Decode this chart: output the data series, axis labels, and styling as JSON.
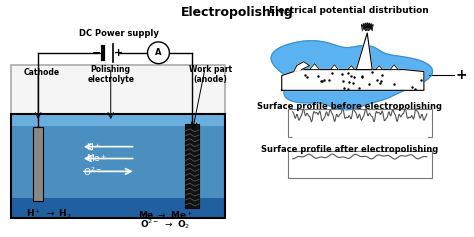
{
  "title": "Electropolishing",
  "left_panel": {
    "dc_label": "DC Power supply",
    "cathode_label": "Cathode",
    "electrolyte_label": "Polishing\nelectrolyte",
    "workpart_label": "Work part\n(anode)",
    "bottom_left": "H$^+$ $\\rightarrow$ H$_2$",
    "bottom_right1": "Me $\\rightarrow$ Me$^+$",
    "bottom_right2": "O$^{2-}$ $\\rightarrow$ O$_2$",
    "bath_color": "#4a8fc0",
    "bath_light": "#6aaee0",
    "cathode_color": "#888888",
    "anode_color": "#111111"
  },
  "right_panel": {
    "top_label": "Electrical potential distribution",
    "mid_label": "Surface profile before electropolishing",
    "bot_label": "Surface profile after electropolishing",
    "blob_color": "#5ab3f0",
    "plus_label": "+"
  }
}
